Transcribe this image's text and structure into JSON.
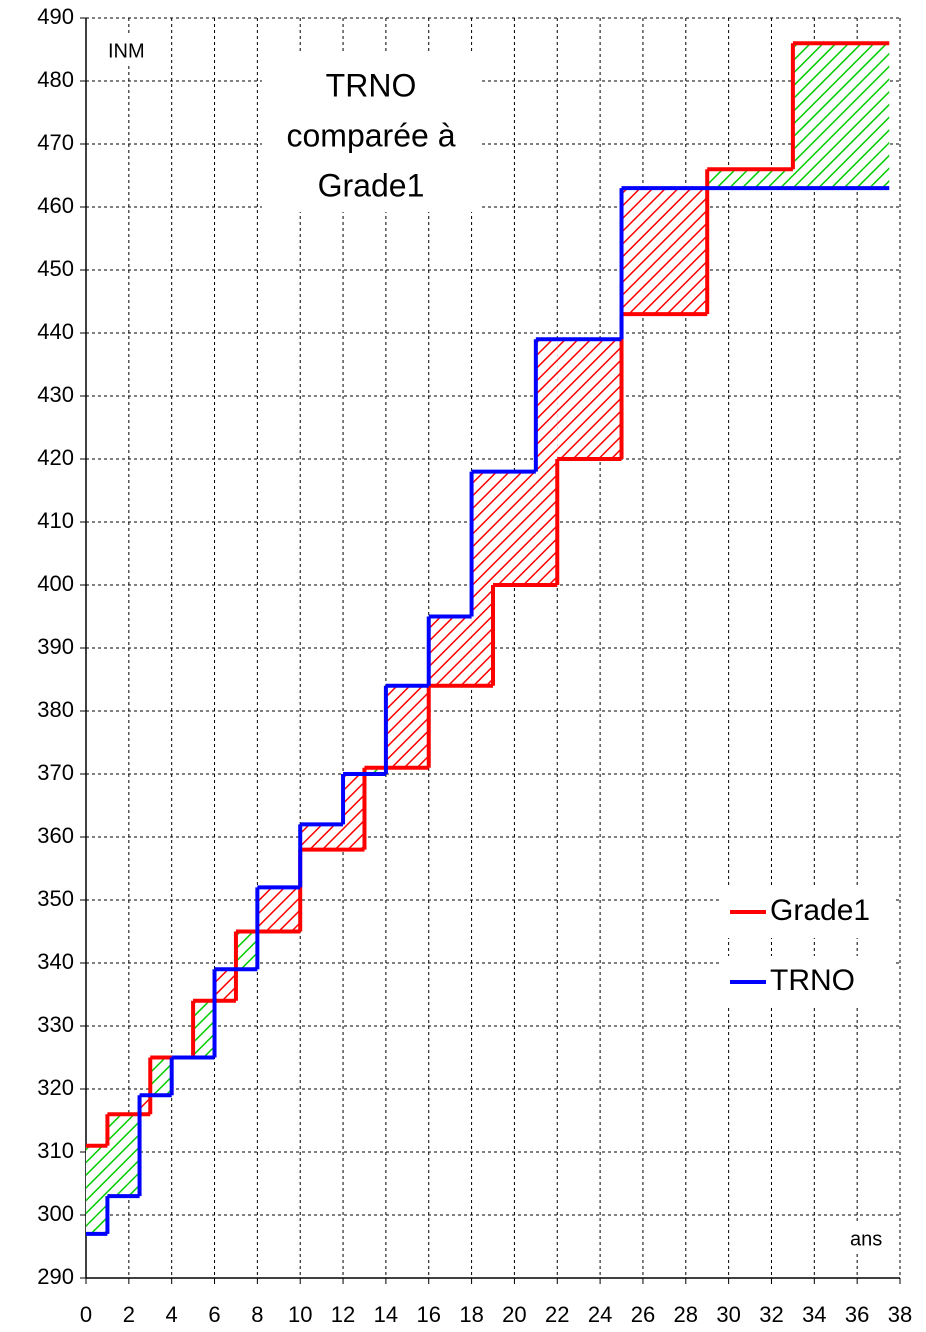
{
  "chart_data": {
    "type": "step",
    "title_lines": [
      "TRNO",
      "comparée à",
      "Grade1"
    ],
    "y_label": "INM",
    "x_label": "ans",
    "xlim": [
      0,
      38
    ],
    "xticks": [
      0,
      2,
      4,
      6,
      8,
      10,
      12,
      14,
      16,
      18,
      20,
      22,
      24,
      26,
      28,
      30,
      32,
      34,
      36,
      38
    ],
    "ylim": [
      290,
      490
    ],
    "yticks": [
      290,
      300,
      310,
      320,
      330,
      340,
      350,
      360,
      370,
      380,
      390,
      400,
      410,
      420,
      430,
      440,
      450,
      460,
      470,
      480,
      490
    ],
    "grid": true,
    "legend": "right",
    "series": [
      {
        "name": "Grade1",
        "color": "#ff0000",
        "x": [
          0,
          1,
          3,
          5,
          7,
          10,
          13,
          16,
          19,
          22,
          25,
          29,
          33,
          37.5
        ],
        "values": [
          311,
          316,
          325,
          334,
          345,
          358,
          371,
          384,
          400,
          420,
          443,
          466,
          486,
          486
        ]
      },
      {
        "name": "TRNO",
        "color": "#0000ff",
        "x": [
          0,
          1,
          2.5,
          4,
          6,
          8,
          10,
          12,
          14,
          16,
          18,
          21,
          25,
          37.5
        ],
        "values": [
          297,
          303,
          319,
          325,
          339,
          352,
          362,
          370,
          384,
          395,
          418,
          439,
          463,
          463
        ]
      }
    ]
  }
}
